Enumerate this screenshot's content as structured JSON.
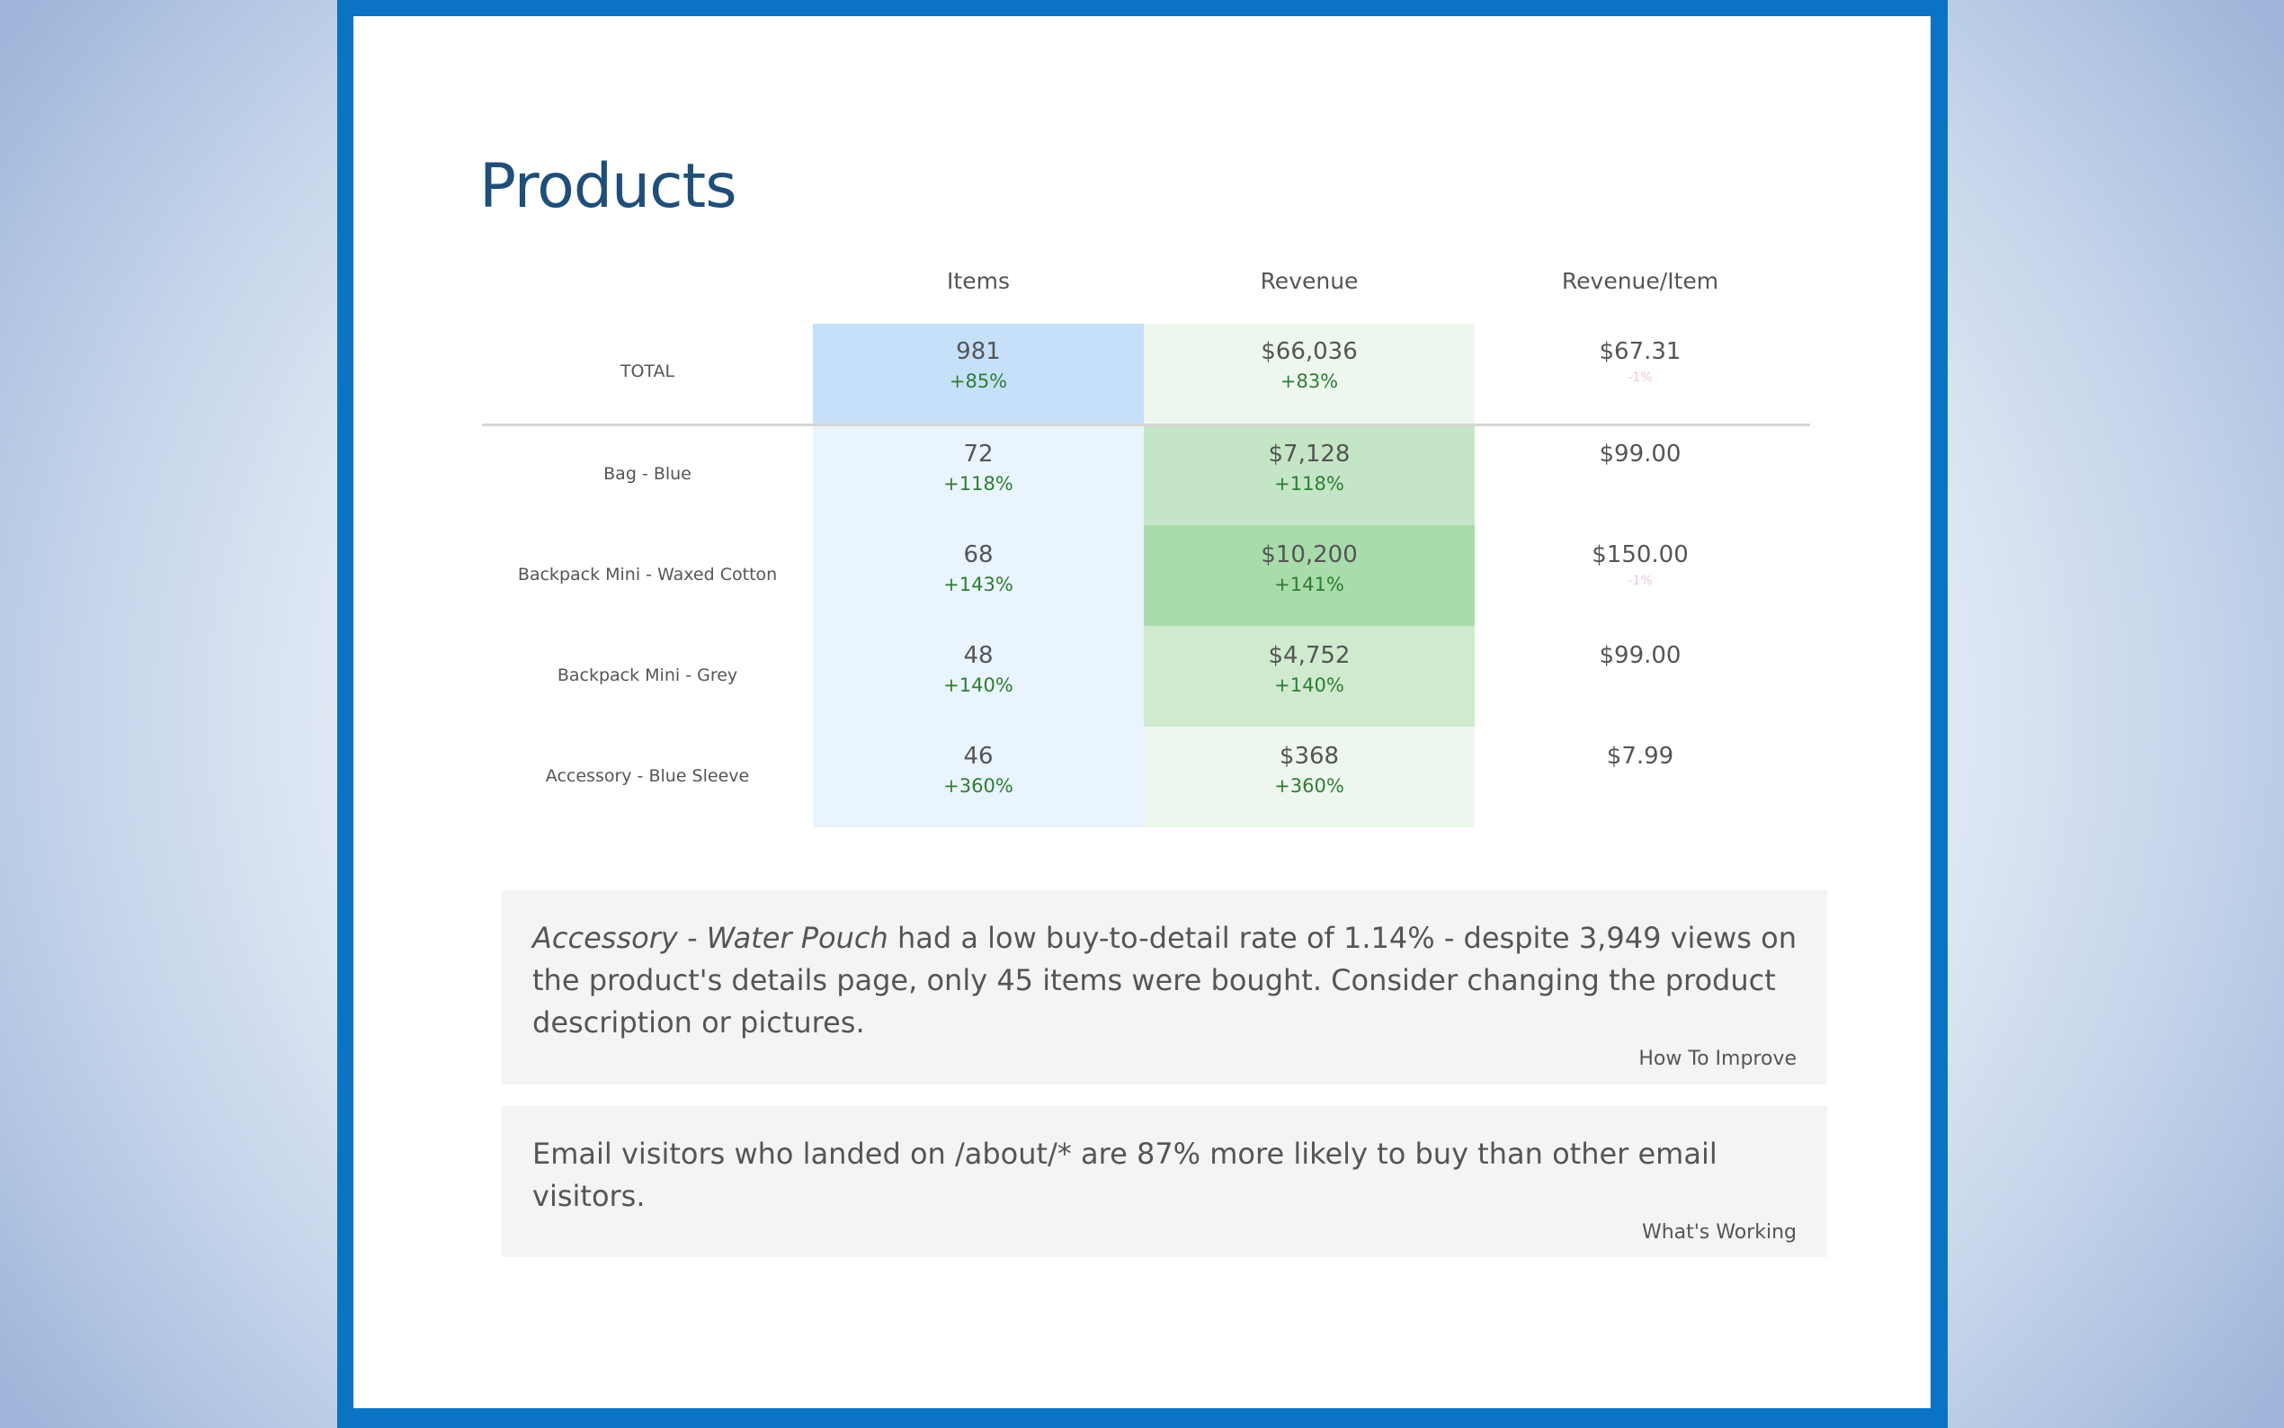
{
  "page": {
    "title": "Products"
  },
  "table": {
    "columns": [
      "Items",
      "Revenue",
      "Revenue/Item"
    ],
    "total": {
      "label": "TOTAL",
      "items": "981",
      "items_delta": "+85%",
      "revenue": "$66,036",
      "revenue_delta": "+83%",
      "rev_per_item": "$67.31",
      "rev_per_item_delta": "-1%"
    },
    "rows": [
      {
        "label": "Bag - Blue",
        "items": "72",
        "items_delta": "+118%",
        "revenue": "$7,128",
        "revenue_delta": "+118%",
        "rev_per_item": "$99.00",
        "rev_per_item_delta": ""
      },
      {
        "label": "Backpack Mini - Waxed Cotton",
        "items": "68",
        "items_delta": "+143%",
        "revenue": "$10,200",
        "revenue_delta": "+141%",
        "rev_per_item": "$150.00",
        "rev_per_item_delta": "-1%"
      },
      {
        "label": "Backpack Mini - Grey",
        "items": "48",
        "items_delta": "+140%",
        "revenue": "$4,752",
        "revenue_delta": "+140%",
        "rev_per_item": "$99.00",
        "rev_per_item_delta": ""
      },
      {
        "label": "Accessory - Blue Sleeve",
        "items": "46",
        "items_delta": "+360%",
        "revenue": "$368",
        "revenue_delta": "+360%",
        "rev_per_item": "$7.99",
        "rev_per_item_delta": ""
      }
    ]
  },
  "insights": [
    {
      "emphasis": "Accessory - Water Pouch",
      "text": " had a low buy-to-detail rate of 1.14% - despite 3,949 views on the product's details page, only 45 items were bought. Consider changing the product description or pictures.",
      "tag": "How To Improve"
    },
    {
      "emphasis": "",
      "text": "Email visitors who landed on /about/* are 87% more likely to buy than other email visitors.",
      "tag": "What's Working"
    }
  ],
  "colors": {
    "frame": "#0a73c4",
    "title": "#1f4e79",
    "items_total_bg": "#c6e0fa",
    "items_bg": "#eaf4fd",
    "revenue_total_bg": "#eef7ee",
    "revenue_scale": [
      "#c4e6c6",
      "#a9dcab",
      "#cfeacf",
      "#eef7ee"
    ],
    "positive": "#2e7d32"
  }
}
